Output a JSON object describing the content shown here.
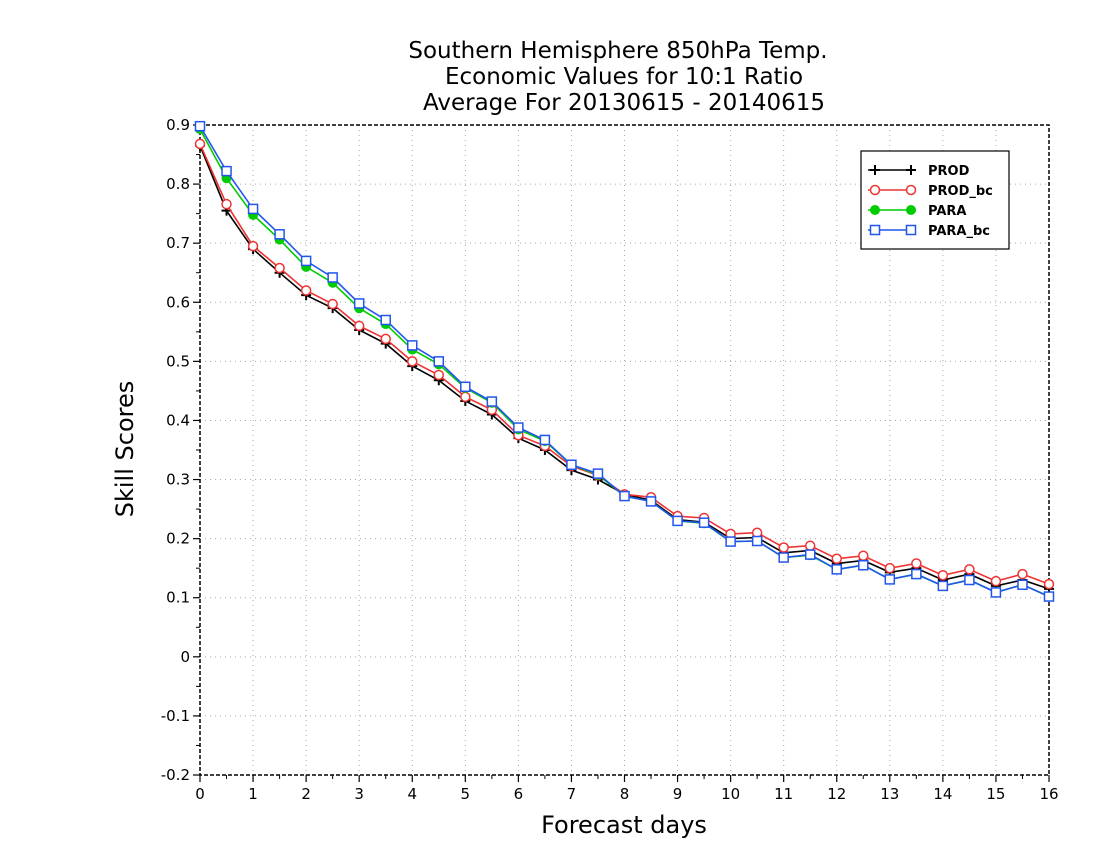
{
  "chart_data": {
    "type": "line",
    "title": [
      "Southern Hemisphere 850hPa Temp.",
      "Economic Values for 10:1 Ratio",
      "Average For 20130615 - 20140615"
    ],
    "xlabel": "Forecast days",
    "ylabel": "Skill Scores",
    "xlim": [
      0,
      16
    ],
    "ylim": [
      -0.2,
      0.9
    ],
    "xticks": [
      0,
      1,
      2,
      3,
      4,
      5,
      6,
      7,
      8,
      9,
      10,
      11,
      12,
      13,
      14,
      15,
      16
    ],
    "xtick_labels": [
      "0",
      "1",
      "2",
      "3",
      "4",
      "5",
      "6",
      "7",
      "8",
      "9",
      "10",
      "11",
      "12",
      "13",
      "14",
      "15",
      "16"
    ],
    "yticks": [
      -0.2,
      -0.1,
      0,
      0.1,
      0.2,
      0.3,
      0.4,
      0.5,
      0.6,
      0.7,
      0.8,
      0.9
    ],
    "ytick_labels": [
      "-0.2",
      "-0.1",
      "0",
      "0.1",
      "0.2",
      "0.3",
      "0.4",
      "0.5",
      "0.6",
      "0.7",
      "0.8",
      "0.9"
    ],
    "grid": true,
    "legend_position": "top-right",
    "x": [
      0,
      0.5,
      1,
      1.5,
      2,
      2.5,
      3,
      3.5,
      4,
      4.5,
      5,
      5.5,
      6,
      6.5,
      7,
      7.5,
      8,
      8.5,
      9,
      9.5,
      10,
      10.5,
      11,
      11.5,
      12,
      12.5,
      13,
      13.5,
      14,
      14.5,
      15,
      15.5,
      16
    ],
    "series": [
      {
        "name": "PROD",
        "color": "#000000",
        "marker": "plus",
        "values": [
          0.865,
          0.755,
          0.69,
          0.65,
          0.612,
          0.59,
          0.553,
          0.53,
          0.492,
          0.468,
          0.433,
          0.41,
          0.37,
          0.35,
          0.316,
          0.3,
          0.275,
          0.265,
          0.232,
          0.228,
          0.2,
          0.202,
          0.176,
          0.18,
          0.158,
          0.163,
          0.143,
          0.15,
          0.13,
          0.14,
          0.12,
          0.13,
          0.115
        ]
      },
      {
        "name": "PROD_bc",
        "color": "#ee3333",
        "marker": "open-circle",
        "values": [
          0.868,
          0.766,
          0.695,
          0.658,
          0.62,
          0.597,
          0.56,
          0.538,
          0.5,
          0.477,
          0.44,
          0.418,
          0.375,
          0.357,
          0.323,
          0.307,
          0.275,
          0.27,
          0.238,
          0.235,
          0.208,
          0.21,
          0.185,
          0.188,
          0.166,
          0.171,
          0.15,
          0.158,
          0.138,
          0.148,
          0.128,
          0.14,
          0.123
        ]
      },
      {
        "name": "PARA",
        "color": "#00cc00",
        "marker": "filled-circle",
        "values": [
          0.893,
          0.81,
          0.748,
          0.706,
          0.66,
          0.633,
          0.59,
          0.563,
          0.52,
          0.495,
          0.455,
          0.43,
          0.385,
          0.365,
          0.325,
          0.308,
          0.272,
          0.263,
          0.23,
          0.226,
          0.195,
          0.196,
          0.168,
          0.172,
          0.148,
          0.155,
          0.131,
          0.14,
          0.12,
          0.13,
          0.109,
          0.122,
          0.102
        ]
      },
      {
        "name": "PARA_bc",
        "color": "#2255ee",
        "marker": "open-square",
        "values": [
          0.898,
          0.822,
          0.758,
          0.715,
          0.67,
          0.642,
          0.598,
          0.57,
          0.527,
          0.5,
          0.457,
          0.432,
          0.388,
          0.367,
          0.325,
          0.31,
          0.272,
          0.263,
          0.23,
          0.227,
          0.195,
          0.196,
          0.168,
          0.173,
          0.148,
          0.155,
          0.131,
          0.14,
          0.12,
          0.13,
          0.109,
          0.122,
          0.102
        ]
      }
    ]
  }
}
